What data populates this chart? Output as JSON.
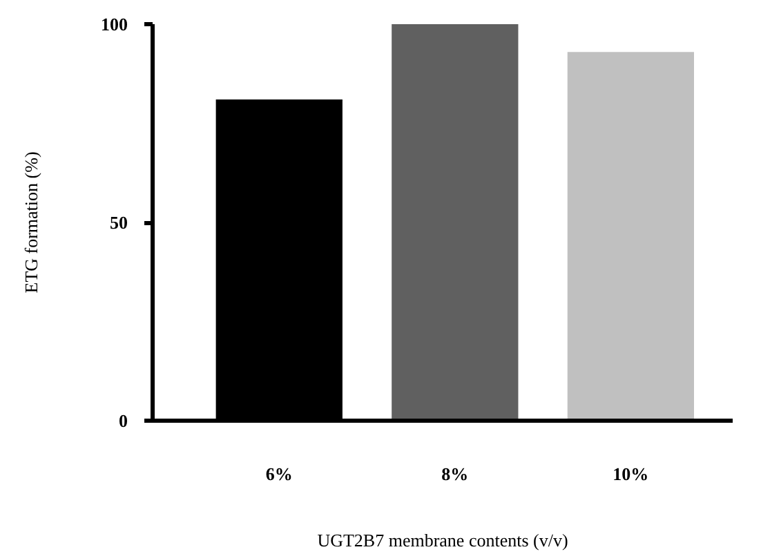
{
  "chart_data": {
    "type": "bar",
    "xlabel": "UGT2B7 membrane contents (v/v)",
    "ylabel": "ETG formation (%)",
    "categories": [
      "6%",
      "8%",
      "10%"
    ],
    "values": [
      81,
      100,
      93
    ],
    "colors": [
      "#000000",
      "#606060",
      "#c0c0c0"
    ],
    "ylim": [
      0,
      100
    ],
    "yticks": [
      0,
      50,
      100
    ],
    "grid": false
  }
}
